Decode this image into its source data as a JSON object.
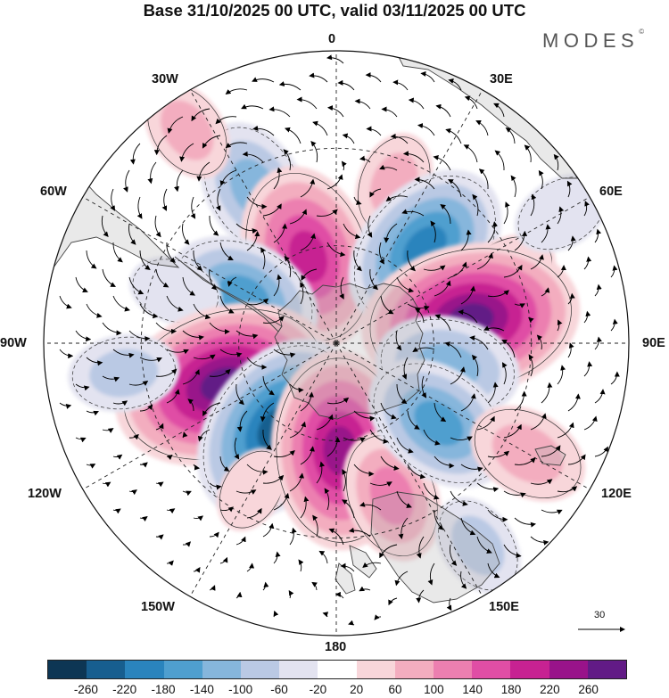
{
  "title": "Base 31/10/2025 00 UTC, valid 03/11/2025 00 UTC",
  "brand": "MODES",
  "brand_mark": "©",
  "longitude_labels": {
    "top": "0",
    "top_right": "30E",
    "upper_right": "60E",
    "right": "90E",
    "lower_right": "120E",
    "bottom_right": "150E",
    "bottom": "180",
    "bottom_left": "150W",
    "lower_left": "120W",
    "left": "90W",
    "upper_left": "60W",
    "top_left": "30W"
  },
  "reference_vector": {
    "label": "30"
  },
  "colorbar": {
    "colors": [
      "#0d3654",
      "#175e8f",
      "#2a84bd",
      "#4f9fcf",
      "#86b6dc",
      "#bac9e4",
      "#e3e3f0",
      "#ffffff",
      "#f8d6da",
      "#f3adbf",
      "#ec7fb0",
      "#e04ea5",
      "#c72292",
      "#99138a",
      "#621b86"
    ],
    "ticks": [
      "-260",
      "-220",
      "-180",
      "-140",
      "-100",
      "-60",
      "-20",
      "20",
      "60",
      "100",
      "140",
      "180",
      "220",
      "260"
    ]
  },
  "anomalies": [
    {
      "lon": -28,
      "colat": 54,
      "value": -120
    },
    {
      "lon": -28,
      "colat": 35,
      "value": -30
    },
    {
      "lon": 20,
      "colat": 52,
      "value": 60
    },
    {
      "lon": -35,
      "colat": 80,
      "value": 60
    },
    {
      "lon": -18,
      "colat": 28,
      "value": 200
    },
    {
      "lon": 43,
      "colat": 40,
      "value": -190
    },
    {
      "lon": 67,
      "colat": 58,
      "value": 40
    },
    {
      "lon": 80,
      "colat": 42,
      "value": 260
    },
    {
      "lon": -63,
      "colat": 32,
      "value": -150
    },
    {
      "lon": -72,
      "colat": 52,
      "value": -40
    },
    {
      "lon": -110,
      "colat": 37,
      "value": 265
    },
    {
      "lon": -145,
      "colat": 32,
      "value": -220
    },
    {
      "lon": -150,
      "colat": 52,
      "value": 30
    },
    {
      "lon": 178,
      "colat": 33,
      "value": 225
    },
    {
      "lon": 160,
      "colat": 50,
      "value": 110
    },
    {
      "lon": 102,
      "colat": 35,
      "value": -130
    },
    {
      "lon": 128,
      "colat": 40,
      "value": -150
    },
    {
      "lon": 120,
      "colat": 68,
      "value": 90
    },
    {
      "lon": 145,
      "colat": 76,
      "value": -60
    },
    {
      "lon": -98,
      "colat": 66,
      "value": -70
    },
    {
      "lon": 60,
      "colat": 80,
      "value": -50
    }
  ]
}
